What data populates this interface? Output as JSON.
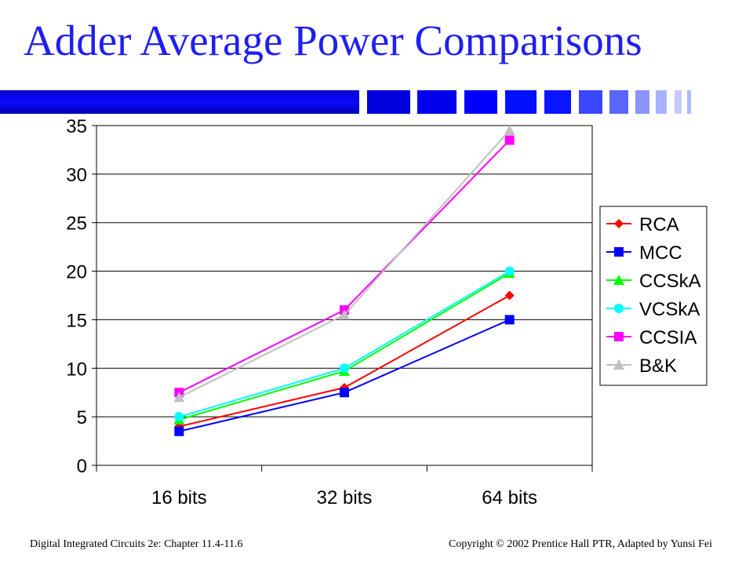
{
  "slide": {
    "title": "Adder Average Power Comparisons",
    "footer_left": "Digital Integrated Circuits 2e: Chapter 11.4-11.6",
    "footer_right": "Copyright © 2002 Prentice Hall PTR, Adapted by Yunsi Fei"
  },
  "chart_data": {
    "type": "line",
    "title": "",
    "xlabel": "",
    "ylabel": "",
    "categories": [
      "16 bits",
      "32 bits",
      "64 bits"
    ],
    "ylim": [
      0,
      35
    ],
    "yticks": [
      0,
      5,
      10,
      15,
      20,
      25,
      30,
      35
    ],
    "grid": true,
    "legend_position": "right",
    "series": [
      {
        "name": "RCA",
        "values": [
          4.0,
          8.0,
          17.5
        ],
        "color": "#ff0000",
        "marker": "diamond"
      },
      {
        "name": "MCC",
        "values": [
          3.5,
          7.5,
          15.0
        ],
        "color": "#0000ff",
        "marker": "square"
      },
      {
        "name": "CCSkA",
        "values": [
          4.7,
          9.7,
          19.8
        ],
        "color": "#00ff00",
        "marker": "triangle"
      },
      {
        "name": "VCSkA",
        "values": [
          5.0,
          10.0,
          20.0
        ],
        "color": "#00ffff",
        "marker": "circle"
      },
      {
        "name": "CCSIA",
        "values": [
          7.5,
          16.0,
          33.5
        ],
        "color": "#ff00ff",
        "marker": "square"
      },
      {
        "name": "B&K",
        "values": [
          7.0,
          15.5,
          34.5
        ],
        "color": "#c0c0c0",
        "marker": "triangle"
      }
    ]
  }
}
